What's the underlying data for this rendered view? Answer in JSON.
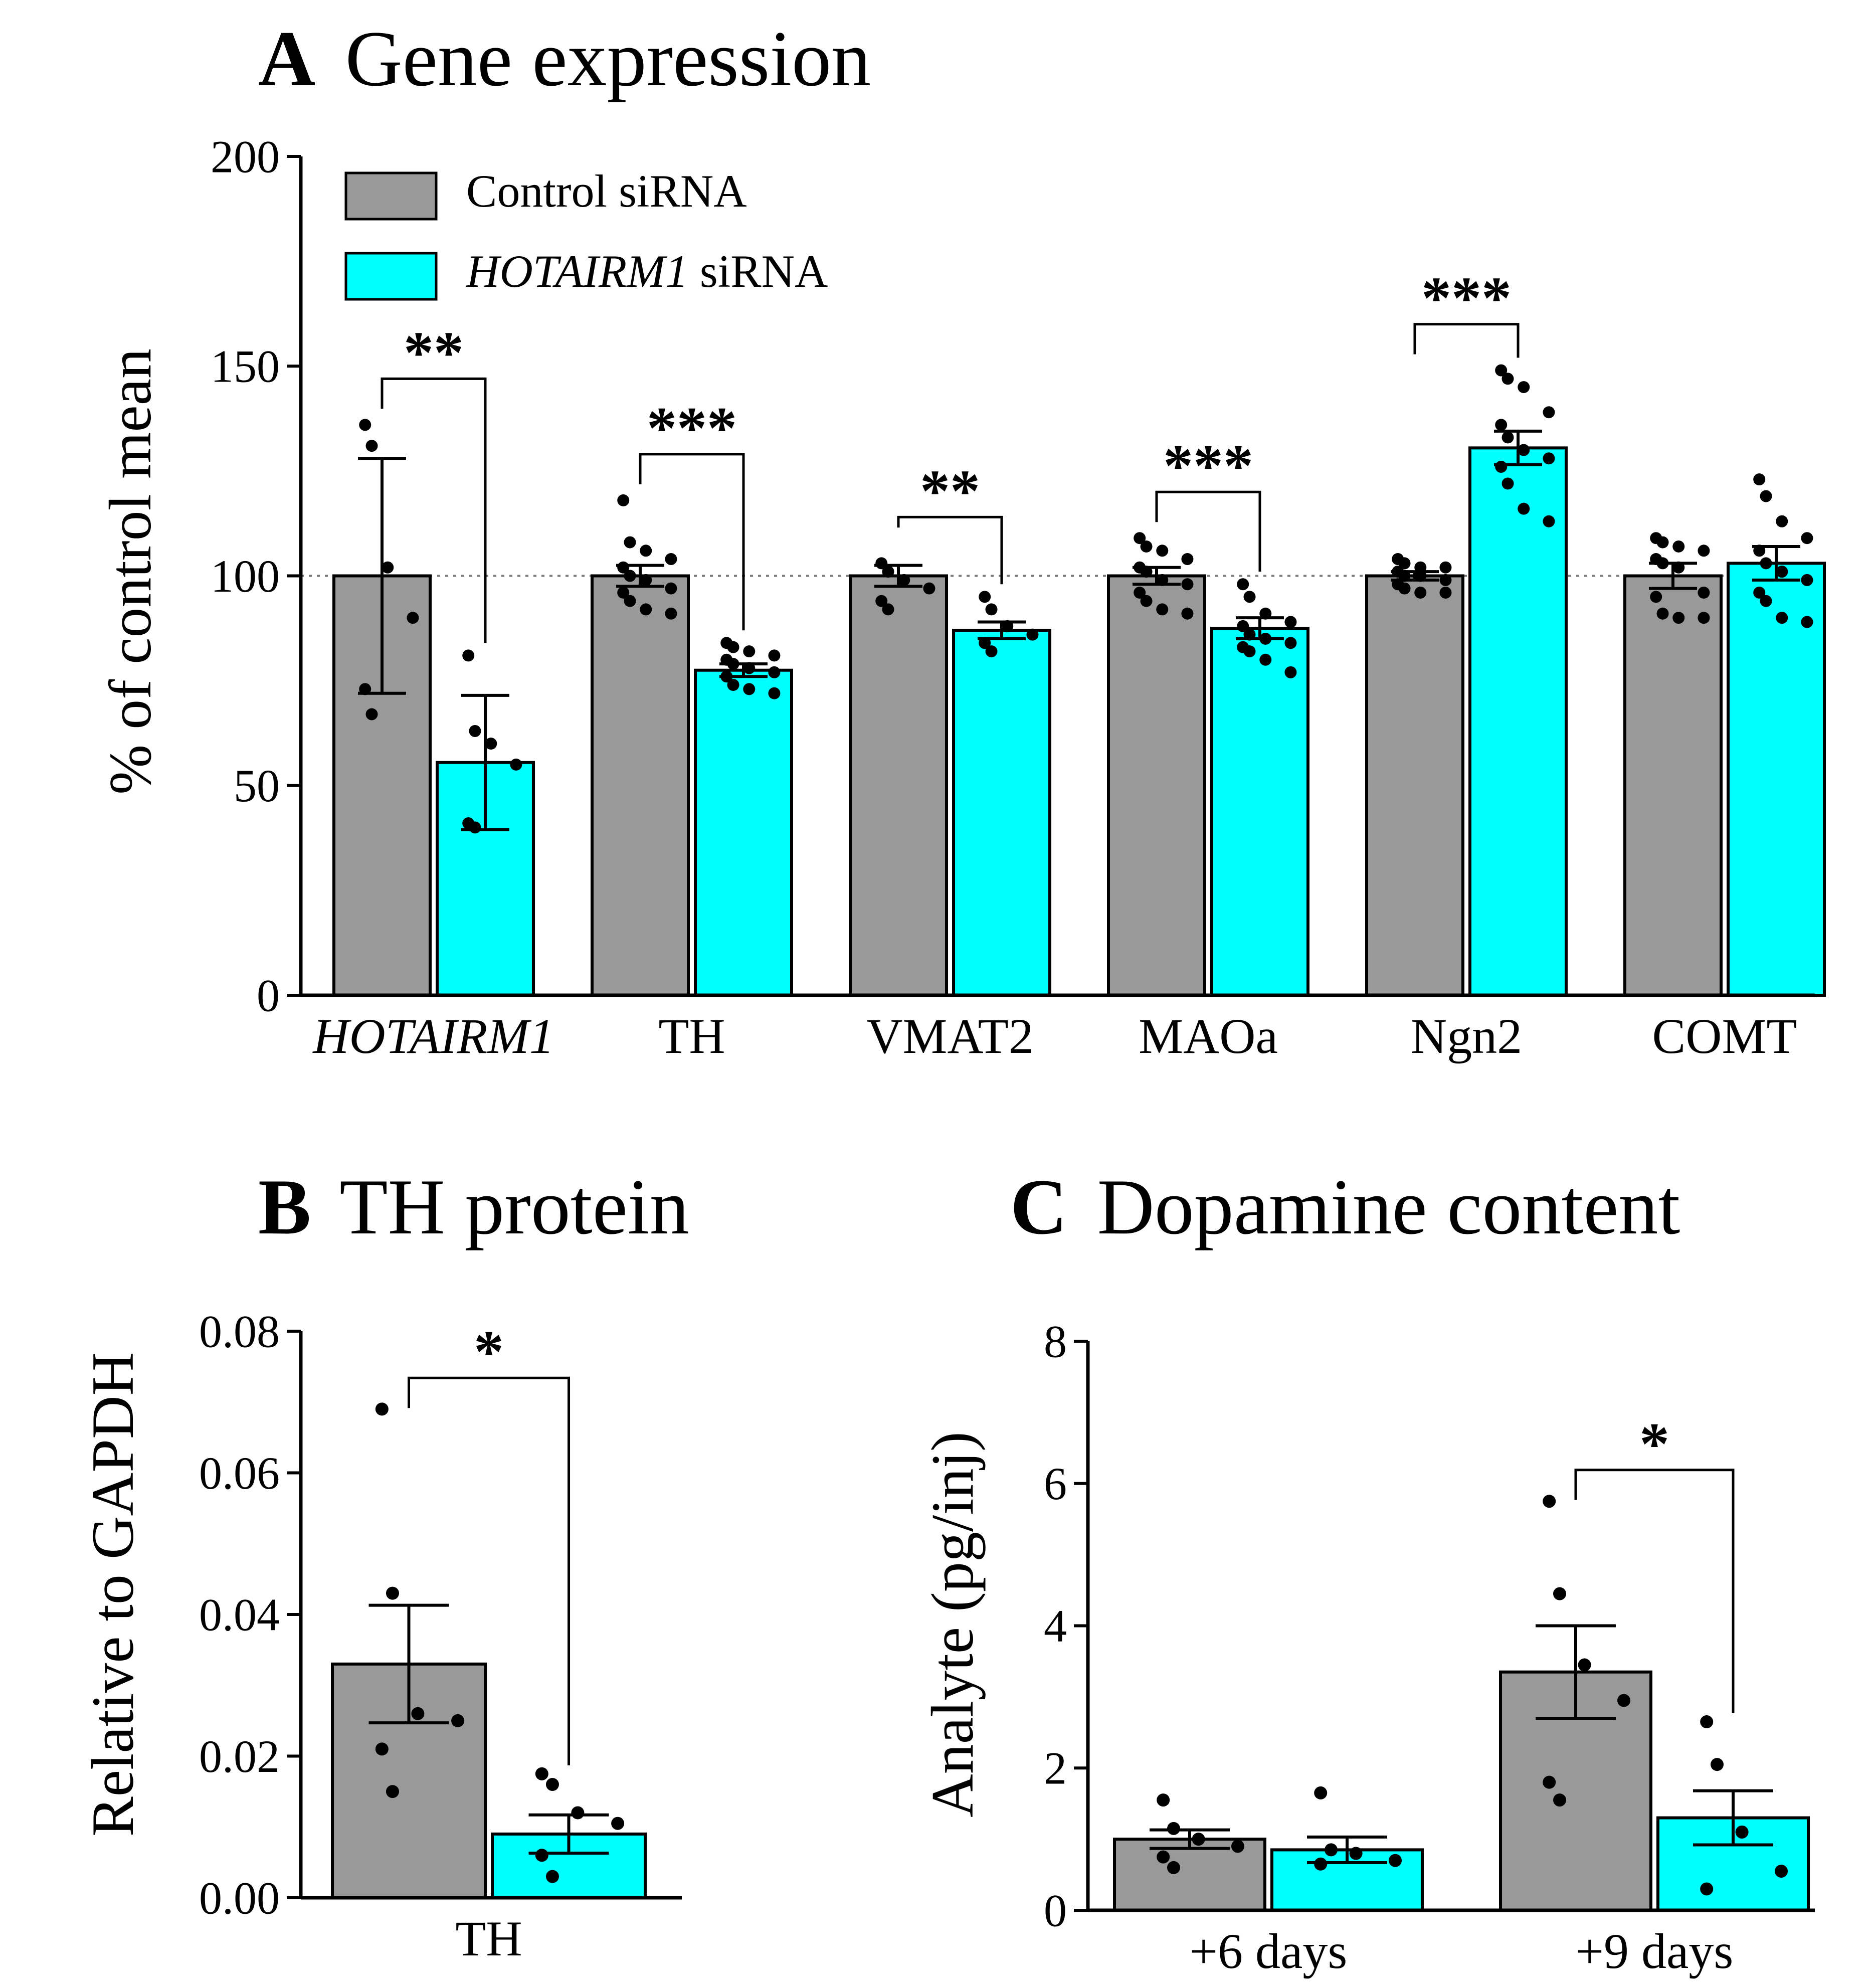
{
  "colors": {
    "control": "#999999",
    "hotairm1": "#00ffff",
    "stroke": "#000000"
  },
  "chart_data": [
    {
      "panel": "A",
      "type": "bar",
      "title_letter": "A",
      "title": "Gene expression",
      "ylabel": "% of control mean",
      "ylim": [
        0,
        200
      ],
      "yticks": [
        "0",
        "50",
        "100",
        "150",
        "200"
      ],
      "reference_line": 100,
      "legend": [
        {
          "name": "Control siRNA",
          "italic_prefix": "",
          "suffix": "Control siRNA"
        },
        {
          "name": "HOTAIRM1 siRNA",
          "italic_prefix": "HOTAIRM1",
          "suffix": " siRNA"
        }
      ],
      "categories": [
        "HOTAIRM1",
        "TH",
        "VMAT2",
        "MAOa",
        "Ngn2",
        "COMT"
      ],
      "italic_categories": [
        "HOTAIRM1"
      ],
      "series": [
        {
          "name": "Control siRNA",
          "values": [
            100,
            100,
            100,
            100,
            100,
            100
          ],
          "sem": [
            28,
            2.5,
            2.5,
            2,
            1,
            3
          ],
          "points": [
            [
              136,
              131,
              102,
              90,
              73,
              67
            ],
            [
              118,
              108,
              106,
              104,
              102,
              100,
              99,
              97,
              96,
              94,
              92,
              91
            ],
            [
              103,
              101,
              99,
              97,
              94,
              92
            ],
            [
              109,
              107,
              106,
              104,
              102,
              101,
              99,
              98,
              96,
              94,
              92,
              91
            ],
            [
              104,
              103,
              102,
              102,
              101,
              100,
              100,
              99,
              98,
              97,
              96,
              96
            ],
            [
              109,
              108,
              107,
              106,
              104,
              103,
              102,
              96,
              95,
              91,
              90,
              90
            ]
          ]
        },
        {
          "name": "HOTAIRM1 siRNA",
          "values": [
            55.5,
            77.5,
            87,
            87.5,
            130.5,
            103
          ],
          "sem": [
            16,
            1.5,
            2,
            2.5,
            4,
            4
          ],
          "points": [
            [
              81,
              63,
              60,
              55,
              41,
              40
            ],
            [
              84,
              83,
              82,
              81,
              80,
              79,
              78,
              77,
              76,
              74,
              73,
              72
            ],
            [
              95,
              92,
              88,
              86,
              84,
              82
            ],
            [
              98,
              95,
              91,
              89,
              88,
              86,
              85,
              84,
              83,
              82,
              80,
              77
            ],
            [
              149,
              147,
              145,
              139,
              136,
              133,
              130,
              128,
              126,
              122,
              116,
              113
            ],
            [
              123,
              119,
              113,
              109,
              106,
              103,
              101,
              99,
              96,
              94,
              90,
              89
            ]
          ]
        }
      ],
      "significance": [
        "**",
        "***",
        "**",
        "***",
        "***",
        ""
      ]
    },
    {
      "panel": "B",
      "type": "bar",
      "title_letter": "B",
      "title": "TH protein",
      "ylabel": "Relative to GAPDH",
      "ylim": [
        0,
        0.08
      ],
      "yticks": [
        "0.00",
        "0.02",
        "0.04",
        "0.06",
        "0.08"
      ],
      "categories": [
        "TH"
      ],
      "series": [
        {
          "name": "Control siRNA",
          "values": [
            0.033
          ],
          "sem": [
            0.0083
          ],
          "points": [
            [
              0.069,
              0.043,
              0.026,
              0.025,
              0.021,
              0.015
            ]
          ]
        },
        {
          "name": "HOTAIRM1 siRNA",
          "values": [
            0.009
          ],
          "sem": [
            0.0027
          ],
          "points": [
            [
              0.0175,
              0.016,
              0.012,
              0.0105,
              0.006,
              0.003
            ]
          ]
        }
      ],
      "significance": [
        "*"
      ]
    },
    {
      "panel": "C",
      "type": "bar",
      "title_letter": "C",
      "title": "Dopamine content",
      "ylabel": "Analyte (pg/inj)",
      "ylim": [
        0,
        8
      ],
      "yticks": [
        "0",
        "2",
        "4",
        "6",
        "8"
      ],
      "categories": [
        "+6 days",
        "+9 days"
      ],
      "series": [
        {
          "name": "Control siRNA",
          "values": [
            1.0,
            3.35
          ],
          "sem": [
            0.13,
            0.65
          ],
          "points": [
            [
              1.55,
              1.15,
              1.0,
              0.9,
              0.75,
              0.6
            ],
            [
              5.75,
              4.45,
              3.45,
              2.95,
              1.8,
              1.55
            ]
          ]
        },
        {
          "name": "HOTAIRM1 siRNA",
          "values": [
            0.85,
            1.3
          ],
          "sem": [
            0.18,
            0.38
          ],
          "points": [
            [
              1.65,
              0.85,
              0.8,
              0.7,
              0.65
            ],
            [
              2.65,
              2.05,
              1.1,
              0.55,
              0.3
            ]
          ]
        }
      ],
      "significance": [
        "",
        "*"
      ]
    }
  ]
}
